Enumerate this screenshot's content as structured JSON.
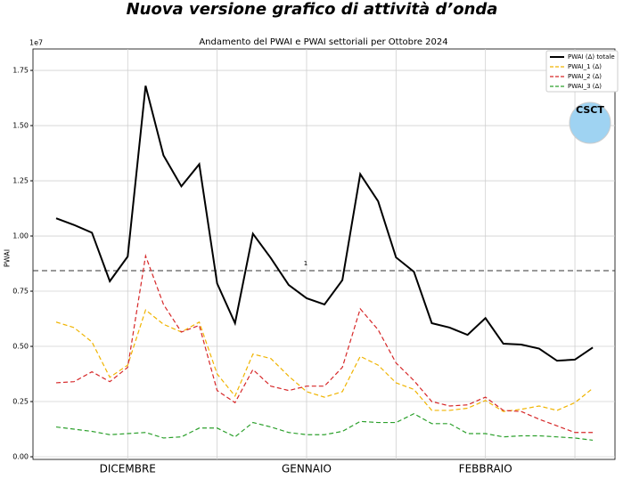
{
  "chart_data": {
    "type": "line",
    "title": "Nuova versione grafico di attività d’onda",
    "subtitle": "Andamento del PWAI e PWAI settoriali per Ottobre 2024",
    "y_label": "PWAI",
    "y_offset_label": "1e7",
    "logo_text": "CSCT",
    "threshold": 0.843,
    "threshold_annotation": "1",
    "grid": true,
    "legend": "upper right",
    "categories": [
      null,
      null,
      null,
      null,
      "DICEMBRE",
      null,
      null,
      null,
      null,
      null,
      null,
      null,
      null,
      null,
      "GENNAIO",
      null,
      null,
      null,
      null,
      null,
      null,
      null,
      null,
      null,
      "FEBBRAIO",
      null,
      null,
      null,
      null,
      null,
      null
    ],
    "ylim": [
      -0.012,
      1.847
    ],
    "yticks": [
      {
        "value": 0,
        "label": "0.00"
      },
      0.25,
      {
        "value": 0.5,
        "label": "0.50"
      },
      0.75,
      {
        "value": 1,
        "label": "1.00"
      },
      1.25,
      {
        "value": 1.5,
        "label": "1.50"
      },
      1.75
    ],
    "series": [
      {
        "name": "PWAI (Δ) totale",
        "color": "#000000",
        "dashed": false,
        "values": [
          1.08,
          1.05,
          1.015,
          0.795,
          0.907,
          1.68,
          1.365,
          1.225,
          1.325,
          0.785,
          0.605,
          1.01,
          0.9,
          0.778,
          0.718,
          0.69,
          0.8,
          1.28,
          1.157,
          0.903,
          0.838,
          0.605,
          0.585,
          0.552,
          0.628,
          0.512,
          0.508,
          0.49,
          0.435,
          0.44,
          0.495
        ]
      },
      {
        "name": "PWAI_1 (Δ)",
        "color": "#f0b400",
        "dashed": true,
        "values": [
          0.61,
          0.585,
          0.52,
          0.36,
          0.415,
          0.665,
          0.6,
          0.565,
          0.61,
          0.375,
          0.275,
          0.465,
          0.445,
          0.365,
          0.295,
          0.27,
          0.295,
          0.455,
          0.415,
          0.335,
          0.305,
          0.21,
          0.21,
          0.22,
          0.255,
          0.205,
          0.215,
          0.23,
          0.21,
          0.245,
          0.31
        ]
      },
      {
        "name": "PWAI_2 (Δ)",
        "color": "#d62728",
        "dashed": true,
        "values": [
          0.335,
          0.34,
          0.385,
          0.34,
          0.405,
          0.91,
          0.69,
          0.565,
          0.595,
          0.3,
          0.245,
          0.395,
          0.32,
          0.3,
          0.32,
          0.32,
          0.405,
          0.67,
          0.575,
          0.425,
          0.345,
          0.25,
          0.23,
          0.235,
          0.27,
          0.21,
          0.205,
          0.17,
          0.14,
          0.11,
          0.11
        ]
      },
      {
        "name": "PWAI_3 (Δ)",
        "color": "#2ca02c",
        "dashed": true,
        "values": [
          0.135,
          0.125,
          0.115,
          0.1,
          0.105,
          0.11,
          0.085,
          0.09,
          0.13,
          0.13,
          0.09,
          0.155,
          0.135,
          0.11,
          0.1,
          0.1,
          0.115,
          0.16,
          0.155,
          0.155,
          0.195,
          0.15,
          0.15,
          0.105,
          0.105,
          0.09,
          0.095,
          0.095,
          0.09,
          0.085,
          0.075
        ]
      }
    ]
  }
}
